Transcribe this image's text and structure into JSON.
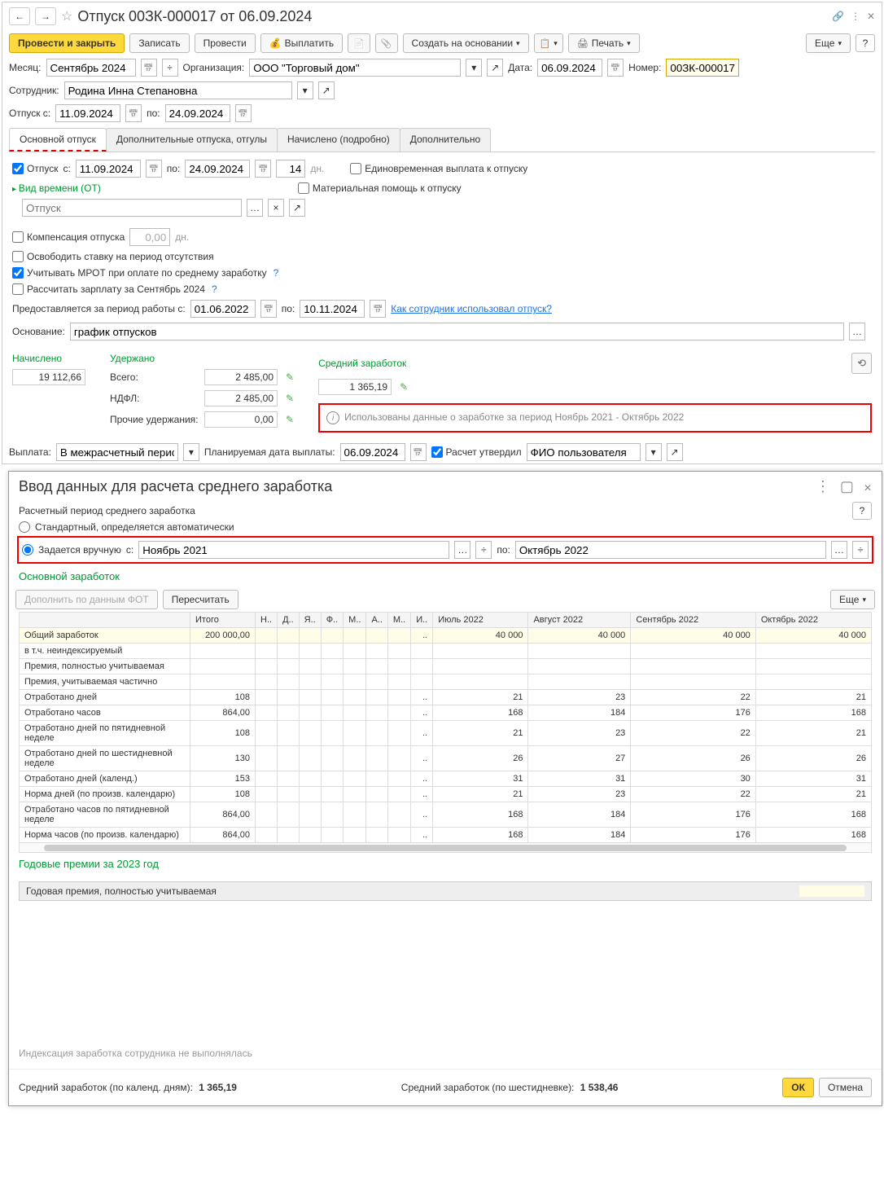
{
  "title": "Отпуск 00ЗК-000017 от 06.09.2024",
  "toolbar": {
    "post_close": "Провести и закрыть",
    "save": "Записать",
    "post": "Провести",
    "pay": "Выплатить",
    "create_based": "Создать на основании",
    "print": "Печать",
    "more": "Еще"
  },
  "form": {
    "month_l": "Месяц:",
    "month": "Сентябрь 2024",
    "org_l": "Организация:",
    "org": "ООО \"Торговый дом\"",
    "date_l": "Дата:",
    "date": "06.09.2024",
    "number_l": "Номер:",
    "number": "00ЗК-000017",
    "emp_l": "Сотрудник:",
    "emp": "Родина Инна Степановна",
    "vac_from_l": "Отпуск с:",
    "vac_from": "11.09.2024",
    "to_l": "по:",
    "vac_to": "24.09.2024"
  },
  "tabs": [
    "Основной отпуск",
    "Дополнительные отпуска, отгулы",
    "Начислено (подробно)",
    "Дополнительно"
  ],
  "main_tab": {
    "vac_chk": "Отпуск",
    "from_l": "с:",
    "from": "11.09.2024",
    "to_l": "по:",
    "to": "24.09.2024",
    "days": "14",
    "days_l": "дн.",
    "lump": "Единовременная выплата к отпуску",
    "mat": "Материальная помощь к отпуску",
    "time_type": "Вид времени (ОТ)",
    "time_ph": "Отпуск",
    "comp": "Компенсация отпуска",
    "comp_v": "0,00",
    "comp_u": "дн.",
    "free_rate": "Освободить ставку на период отсутствия",
    "mrot": "Учитывать МРОТ при оплате по среднему заработку",
    "calc_salary": "Рассчитать зарплату за Сентябрь 2024",
    "provided_l": "Предоставляется за период работы с:",
    "provided_from": "01.06.2022",
    "provided_to": "10.11.2024",
    "how_used": "Как сотрудник использовал отпуск?",
    "reason_l": "Основание:",
    "reason": "график отпусков"
  },
  "accr": {
    "accrued_l": "Начислено",
    "accrued": "19 112,66",
    "withheld_l": "Удержано",
    "total_l": "Всего:",
    "total": "2 485,00",
    "ndfl_l": "НДФЛ:",
    "ndfl": "2 485,00",
    "other_l": "Прочие удержания:",
    "other": "0,00",
    "avg_l": "Средний заработок",
    "avg": "1 365,19",
    "info": "Использованы данные о заработке за период Ноябрь 2021 - Октябрь 2022"
  },
  "payout": {
    "l": "Выплата:",
    "v": "В межрасчетный период",
    "plan_l": "Планируемая дата выплаты:",
    "plan_v": "06.09.2024",
    "appr_l": "Расчет утвердил",
    "appr_v": "ФИО пользователя"
  },
  "dlg": {
    "title": "Ввод данных для расчета среднего заработка",
    "period_hdr": "Расчетный период среднего заработка",
    "radio_std": "Стандартный, определяется автоматически",
    "radio_manual": "Задается вручную",
    "from_l": "с:",
    "from": "Ноябрь 2021",
    "to_l": "по:",
    "to": "Октябрь 2022",
    "section1": "Основной заработок",
    "btn_add": "Дополнить по данным ФОТ",
    "btn_recalc": "Пересчитать",
    "more": "Еще",
    "cols": [
      "",
      "Итого",
      "Н..",
      "Д..",
      "Я..",
      "Ф..",
      "М..",
      "А..",
      "М..",
      "И..",
      "Июль 2022",
      "Август 2022",
      "Сентябрь 2022",
      "Октябрь 2022"
    ],
    "rows": [
      {
        "label": "Общий заработок",
        "total": "200 000,00",
        "m": [
          "",
          "",
          "",
          "",
          "",
          "",
          "",
          "..",
          "40 000",
          "40 000",
          "40 000",
          "40 000"
        ],
        "yellow": true,
        "gray": true
      },
      {
        "label": "  в т.ч. неиндексируемый",
        "total": "",
        "m": [
          "",
          "",
          "",
          "",
          "",
          "",
          "",
          "",
          "",
          "",
          "",
          ""
        ]
      },
      {
        "label": "Премия, полностью учитываемая",
        "total": "",
        "m": [
          "",
          "",
          "",
          "",
          "",
          "",
          "",
          "",
          "",
          "",
          "",
          ""
        ]
      },
      {
        "label": "Премия, учитываемая частично",
        "total": "",
        "m": [
          "",
          "",
          "",
          "",
          "",
          "",
          "",
          "",
          "",
          "",
          "",
          ""
        ]
      },
      {
        "label": "Отработано дней",
        "total": "108",
        "m": [
          "",
          "",
          "",
          "",
          "",
          "",
          "",
          "..",
          "21",
          "23",
          "22",
          "21"
        ]
      },
      {
        "label": "Отработано часов",
        "total": "864,00",
        "m": [
          "",
          "",
          "",
          "",
          "",
          "",
          "",
          "..",
          "168",
          "184",
          "176",
          "168"
        ]
      },
      {
        "label": "Отработано дней по пятидневной неделе",
        "total": "108",
        "m": [
          "",
          "",
          "",
          "",
          "",
          "",
          "",
          "..",
          "21",
          "23",
          "22",
          "21"
        ]
      },
      {
        "label": "Отработано дней по шестидневной неделе",
        "total": "130",
        "m": [
          "",
          "",
          "",
          "",
          "",
          "",
          "",
          "..",
          "26",
          "27",
          "26",
          "26"
        ]
      },
      {
        "label": "Отработано дней (календ.)",
        "total": "153",
        "m": [
          "",
          "",
          "",
          "",
          "",
          "",
          "",
          "..",
          "31",
          "31",
          "30",
          "31"
        ]
      },
      {
        "label": "Норма дней (по произв. календарю)",
        "total": "108",
        "m": [
          "",
          "",
          "",
          "",
          "",
          "",
          "",
          "..",
          "21",
          "23",
          "22",
          "21"
        ]
      },
      {
        "label": "Отработано часов по пятидневной неделе",
        "total": "864,00",
        "m": [
          "",
          "",
          "",
          "",
          "",
          "",
          "",
          "..",
          "168",
          "184",
          "176",
          "168"
        ]
      },
      {
        "label": "Норма часов (по произв. календарю)",
        "total": "864,00",
        "m": [
          "",
          "",
          "",
          "",
          "",
          "",
          "",
          "..",
          "168",
          "184",
          "176",
          "168"
        ]
      }
    ],
    "annual_hdr": "Годовые премии за 2023 год",
    "annual_row": "Годовая премия, полностью учитываемая",
    "no_index": "Индексация заработка сотрудника не выполнялась",
    "avg1_l": "Средний заработок (по календ. дням):",
    "avg1": "1 365,19",
    "avg2_l": "Средний заработок (по шестидневке):",
    "avg2": "1 538,46",
    "ok": "ОК",
    "cancel": "Отмена"
  }
}
